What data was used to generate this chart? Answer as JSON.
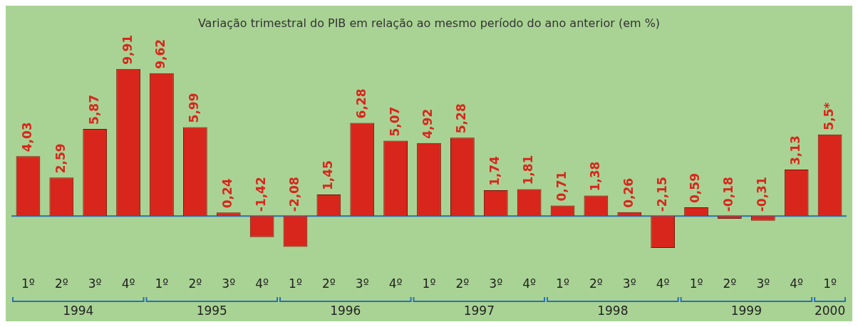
{
  "chart_data": {
    "type": "bar",
    "title": "Variação trimestral do PIB em relação ao mesmo período do ano anterior (em %)",
    "categories": [
      "1º",
      "2º",
      "3º",
      "4º",
      "1º",
      "2º",
      "3º",
      "4º",
      "1º",
      "2º",
      "3º",
      "4º",
      "1º",
      "2º",
      "3º",
      "4º",
      "1º",
      "2º",
      "3º",
      "4º",
      "1º",
      "2º",
      "3º",
      "4º",
      "1º"
    ],
    "values": [
      4.03,
      2.59,
      5.87,
      9.91,
      9.62,
      5.99,
      0.24,
      -1.42,
      -2.08,
      1.45,
      6.28,
      5.07,
      4.92,
      5.28,
      1.74,
      1.81,
      0.71,
      1.38,
      0.26,
      -2.15,
      0.59,
      -0.18,
      -0.31,
      3.13,
      5.5
    ],
    "value_labels": [
      "4,03",
      "2,59",
      "5,87",
      "9,91",
      "9,62",
      "5,99",
      "0,24",
      "-1,42",
      "-2,08",
      "1,45",
      "6,28",
      "5,07",
      "4,92",
      "5,28",
      "1,74",
      "1,81",
      "0,71",
      "1,38",
      "0,26",
      "-2,15",
      "0,59",
      "-0,18",
      "-0,31",
      "3,13",
      "5,5*"
    ],
    "color": "#d8261c",
    "annotations": [
      "1994",
      "1995",
      "1996",
      "1997",
      "1998",
      "1999",
      "2000"
    ],
    "ref_lines": [
      {
        "axis": "y",
        "value": 0,
        "color": "#2a6fb5"
      }
    ],
    "grid": false,
    "legend": false
  }
}
